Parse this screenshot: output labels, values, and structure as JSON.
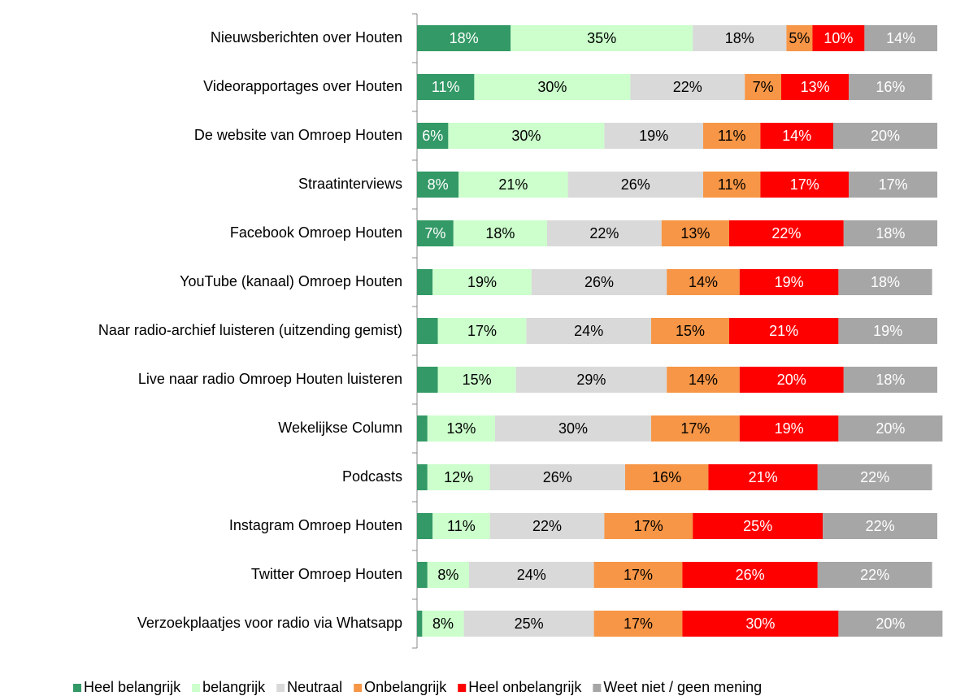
{
  "chart_data": {
    "type": "stacked_barh",
    "categories": [
      "Nieuwsberichten over Houten",
      "Videorapportages over Houten",
      "De website van Omroep Houten",
      "Straatinterviews",
      "Facebook Omroep Houten",
      "YouTube (kanaal) Omroep Houten",
      "Naar radio-archief luisteren (uitzending gemist)",
      "Live naar radio Omroep Houten luisteren",
      "Wekelijkse Column",
      "Podcasts",
      "Instagram Omroep Houten",
      "Twitter Omroep Houten",
      "Verzoekplaatjes voor radio via Whatsapp"
    ],
    "xlim": [
      0,
      100
    ],
    "legend": "bottom",
    "series": [
      {
        "name": "Heel belangrijk",
        "color": "#339966",
        "label_color": "#ffffff",
        "values": [
          18,
          11,
          6,
          8,
          7,
          3,
          4,
          4,
          2,
          2,
          3,
          2,
          1
        ],
        "value_labels": [
          "18%",
          "11%",
          "6%",
          "8%",
          "7%",
          null,
          null,
          null,
          null,
          null,
          null,
          null,
          null
        ]
      },
      {
        "name": "belangrijk",
        "color": "#ccffcc",
        "label_color": "#000000",
        "values": [
          35,
          30,
          30,
          21,
          18,
          19,
          17,
          15,
          13,
          12,
          11,
          8,
          8
        ],
        "value_labels": [
          "35%",
          "30%",
          "30%",
          "21%",
          "18%",
          "19%",
          "17%",
          "15%",
          "13%",
          "12%",
          "11%",
          "8%",
          "8%"
        ]
      },
      {
        "name": "Neutraal",
        "color": "#d9d9d9",
        "label_color": "#000000",
        "values": [
          18,
          22,
          19,
          26,
          22,
          26,
          24,
          29,
          30,
          26,
          22,
          24,
          25
        ],
        "value_labels": [
          "18%",
          "22%",
          "19%",
          "26%",
          "22%",
          "26%",
          "24%",
          "29%",
          "30%",
          "26%",
          "22%",
          "24%",
          "25%"
        ]
      },
      {
        "name": "Onbelangrijk",
        "color": "#f79646",
        "label_color": "#000000",
        "values": [
          5,
          7,
          11,
          11,
          13,
          14,
          15,
          14,
          17,
          16,
          17,
          17,
          17
        ],
        "value_labels": [
          "5%",
          "7%",
          "11%",
          "11%",
          "13%",
          "14%",
          "15%",
          "14%",
          "17%",
          "16%",
          "17%",
          "17%",
          "17%"
        ]
      },
      {
        "name": "Heel onbelangrijk",
        "color": "#ff0000",
        "label_color": "#ffffff",
        "values": [
          10,
          13,
          14,
          17,
          22,
          19,
          21,
          20,
          19,
          21,
          25,
          26,
          30
        ],
        "value_labels": [
          "10%",
          "13%",
          "14%",
          "17%",
          "22%",
          "19%",
          "21%",
          "20%",
          "19%",
          "21%",
          "25%",
          "26%",
          "30%"
        ]
      },
      {
        "name": "Weet niet / geen mening",
        "color": "#a6a6a6",
        "label_color": "#ffffff",
        "values": [
          14,
          16,
          20,
          17,
          18,
          18,
          19,
          18,
          20,
          22,
          22,
          22,
          20
        ],
        "value_labels": [
          "14%",
          "16%",
          "20%",
          "17%",
          "18%",
          "18%",
          "19%",
          "18%",
          "20%",
          "22%",
          "22%",
          "22%",
          "20%"
        ]
      }
    ]
  }
}
